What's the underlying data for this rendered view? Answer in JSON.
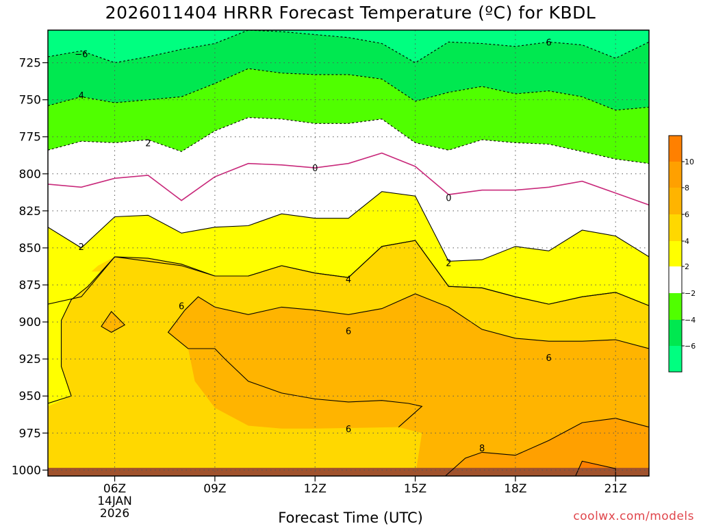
{
  "title": "2026011404 HRRR Forecast Temperature (ºC) for KBDL",
  "credit": "coolwx.com/models",
  "colors": {
    "lt_m6": "#00ff80",
    "m6_m4": "#00e850",
    "m4_m2": "#50ff00",
    "m2_2": "#ffffff",
    "p2_4": "#ffff00",
    "p4_6": "#ffd800",
    "p6_8": "#ffb400",
    "p8_10": "#ffa000",
    "gt_10": "#ff8000",
    "ground": "#a0522d",
    "freezing_contour": "#c8287a"
  },
  "chart_data": {
    "type": "contour",
    "title": "2026011404 HRRR Forecast Temperature (ºC) for KBDL",
    "xlabel": "Forecast Time (UTC)",
    "ylabel": "",
    "x_ticks": [
      "06Z",
      "09Z",
      "12Z",
      "15Z",
      "18Z",
      "21Z"
    ],
    "x_date_label": [
      "14JAN",
      "2026"
    ],
    "x_range_hours": [
      4,
      22
    ],
    "y_ticks": [
      725,
      750,
      775,
      800,
      825,
      850,
      875,
      900,
      925,
      950,
      975,
      1000
    ],
    "y_range": [
      703,
      1004
    ],
    "colorbar": {
      "labels": [
        "10",
        "8",
        "6",
        "4",
        "2",
        "−2",
        "−4",
        "−6"
      ],
      "levels": [
        10,
        8,
        6,
        4,
        2,
        -2,
        -4,
        -6
      ]
    },
    "contour_labels": [
      {
        "text": "−6",
        "hour": 5,
        "p": 719
      },
      {
        "text": "6",
        "hour": 19,
        "p": 711
      },
      {
        "text": "4",
        "hour": 5,
        "p": 747
      },
      {
        "text": "2",
        "hour": 7,
        "p": 779
      },
      {
        "text": "0",
        "hour": 12,
        "p": 796
      },
      {
        "text": "0",
        "hour": 16,
        "p": 816
      },
      {
        "text": "2",
        "hour": 5,
        "p": 849
      },
      {
        "text": "2",
        "hour": 16,
        "p": 860
      },
      {
        "text": "4",
        "hour": 13,
        "p": 871
      },
      {
        "text": "6",
        "hour": 8,
        "p": 889
      },
      {
        "text": "6",
        "hour": 13,
        "p": 906
      },
      {
        "text": "6",
        "hour": 19,
        "p": 924
      },
      {
        "text": "6",
        "hour": 13,
        "p": 972
      },
      {
        "text": "8",
        "hour": 17,
        "p": 985
      }
    ],
    "isotherms": {
      "hours": [
        4,
        5,
        6,
        7,
        8,
        9,
        10,
        11,
        12,
        13,
        14,
        15,
        16,
        17,
        18,
        19,
        20,
        21,
        22
      ],
      "m6": [
        721,
        717,
        725,
        721,
        716,
        712,
        703,
        704,
        706,
        708,
        712,
        725,
        711,
        712,
        714,
        711,
        713,
        722,
        711
      ],
      "m4": [
        754,
        748,
        752,
        750,
        748,
        739,
        729,
        732,
        733,
        733,
        736,
        751,
        745,
        741,
        746,
        744,
        748,
        757,
        755
      ],
      "m2": [
        784,
        778,
        779,
        777,
        785,
        771,
        762,
        763,
        766,
        766,
        763,
        779,
        784,
        777,
        779,
        780,
        785,
        790,
        793
      ],
      "zero": [
        807,
        809,
        803,
        801,
        818,
        802,
        793,
        794,
        796,
        793,
        786,
        795,
        814,
        811,
        811,
        809,
        805,
        813,
        821
      ],
      "p2": [
        836,
        850,
        829,
        828,
        840,
        836,
        835,
        827,
        830,
        830,
        812,
        815,
        859,
        858,
        849,
        852,
        838,
        842,
        856
      ],
      "p4": [
        888,
        883,
        856,
        859,
        862,
        869,
        869,
        862,
        867,
        870,
        849,
        845,
        876,
        877,
        883,
        888,
        883,
        880,
        889
      ]
    }
  }
}
